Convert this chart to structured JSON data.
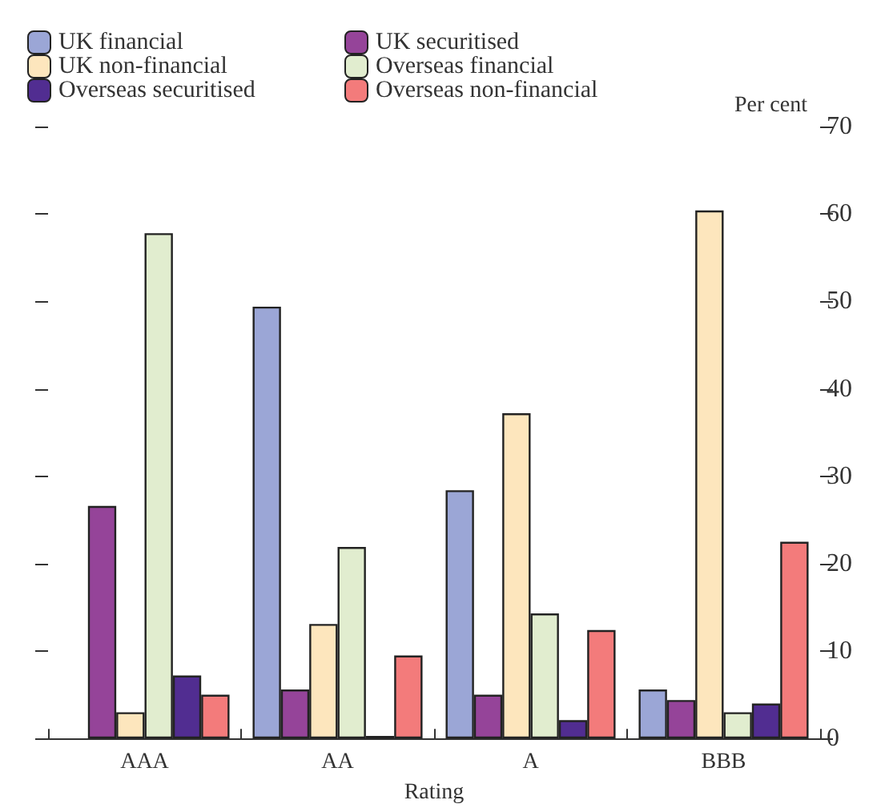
{
  "chart_data": {
    "type": "bar",
    "xlabel": "Rating",
    "ylabel": "Per cent",
    "categories": [
      "AAA",
      "AA",
      "A",
      "BBB"
    ],
    "series": [
      {
        "name": "UK financial",
        "color": "#9ba6d6",
        "values": [
          null,
          49.4,
          28.4,
          5.6
        ]
      },
      {
        "name": "UK securitised",
        "color": "#954499",
        "values": [
          26.6,
          5.6,
          5.0,
          4.4
        ]
      },
      {
        "name": "UK non-financial",
        "color": "#fde6bd",
        "values": [
          3.0,
          13.1,
          37.2,
          60.4
        ]
      },
      {
        "name": "Overseas financial",
        "color": "#e1edcf",
        "values": [
          57.8,
          21.9,
          14.3,
          3.0
        ]
      },
      {
        "name": "Overseas securitised",
        "color": "#512d91",
        "values": [
          7.2,
          0.3,
          2.1,
          4.0
        ]
      },
      {
        "name": "Overseas non-financial",
        "color": "#f37b7b",
        "values": [
          5.0,
          9.5,
          12.4,
          22.5
        ]
      }
    ],
    "ylim": [
      0,
      70
    ],
    "yticks": [
      0,
      10,
      20,
      30,
      40,
      50,
      60,
      70
    ],
    "grid": false,
    "legend": "top left"
  }
}
